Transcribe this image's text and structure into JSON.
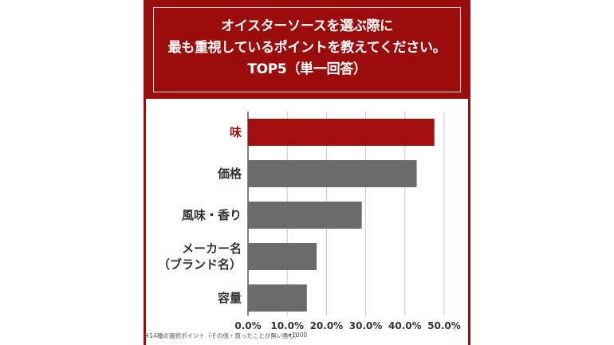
{
  "colors": {
    "header_bg": "#9b0d0d",
    "highlight_bar": "#a10f0f",
    "bar": "#6b6b6b",
    "highlight_label": "#9b0d0d"
  },
  "header": {
    "title": "オイスターソースを選ぶ際に\n最も重視しているポイントを教えてください。\nTOP5（単一回答）"
  },
  "chart_data": {
    "type": "bar",
    "orientation": "horizontal",
    "categories": [
      "味",
      "価格",
      "風味・香り",
      "メーカー名\n（ブランド名）",
      "容量"
    ],
    "values": [
      47.5,
      43.0,
      29.0,
      17.5,
      15.0
    ],
    "highlight_index": 0,
    "xlim": [
      0,
      50
    ],
    "xticks": [
      0,
      10,
      20,
      30,
      40,
      50
    ],
    "xtick_labels": [
      "0.0%",
      "10.0%",
      "20.0%",
      "30.0%",
      "40.0%",
      "50.0%"
    ],
    "grid": "vertical"
  },
  "footnote": "※14種の選択ポイント（その他・買ったことが無い含む）",
  "sample_size": "n=1000"
}
